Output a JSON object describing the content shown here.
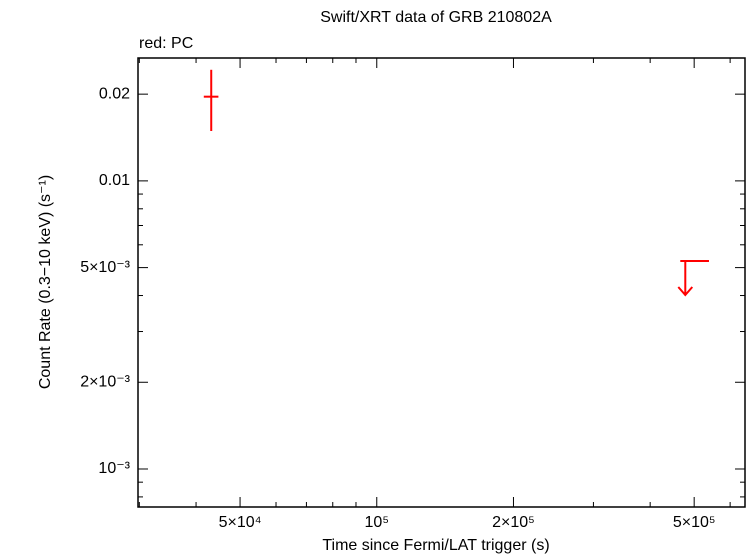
{
  "chart_data": {
    "type": "scatter",
    "title": "Swift/XRT data of GRB 210802A",
    "subtitle": "red: PC",
    "x_label": "Time since Fermi/LAT trigger (s)",
    "y_label": "Count Rate (0.3−10 keV) (s⁻¹)",
    "xscale": "log",
    "yscale": "log",
    "xlim": [
      29800,
      647000
    ],
    "ylim": [
      0.000738,
      0.0267
    ],
    "xticks": [
      {
        "value": 50000,
        "label": "5×10⁴"
      },
      {
        "value": 100000,
        "label": "10⁵"
      },
      {
        "value": 200000,
        "label": "2×10⁵"
      },
      {
        "value": 500000,
        "label": "5×10⁵"
      }
    ],
    "yticks": [
      {
        "value": 0.001,
        "label": "10⁻³"
      },
      {
        "value": 0.002,
        "label": "2×10⁻³"
      },
      {
        "value": 0.005,
        "label": "5×10⁻³"
      },
      0.01,
      0.02
    ],
    "xminorticks": [
      30000,
      40000,
      60000,
      70000,
      80000,
      90000,
      300000,
      400000,
      600000
    ],
    "yminorticks": [
      0.0008,
      0.0009,
      0.003,
      0.004,
      0.006,
      0.007,
      0.008,
      0.009
    ],
    "series": [
      {
        "color": "#ff0000",
        "x": [
          43200
        ],
        "xerr_minus": [
          1600
        ],
        "xerr_plus": [
          1600
        ],
        "values": [
          0.0196
        ],
        "yerr_minus": [
          0.0047
        ],
        "yerr_plus": [
          0.0047
        ]
      }
    ],
    "upper_limits": {
      "color": "#ff0000",
      "x": [
        478000
      ],
      "xerr_minus": [
        12000
      ],
      "xerr_plus": [
        61000
      ],
      "values": [
        0.00527
      ]
    }
  }
}
